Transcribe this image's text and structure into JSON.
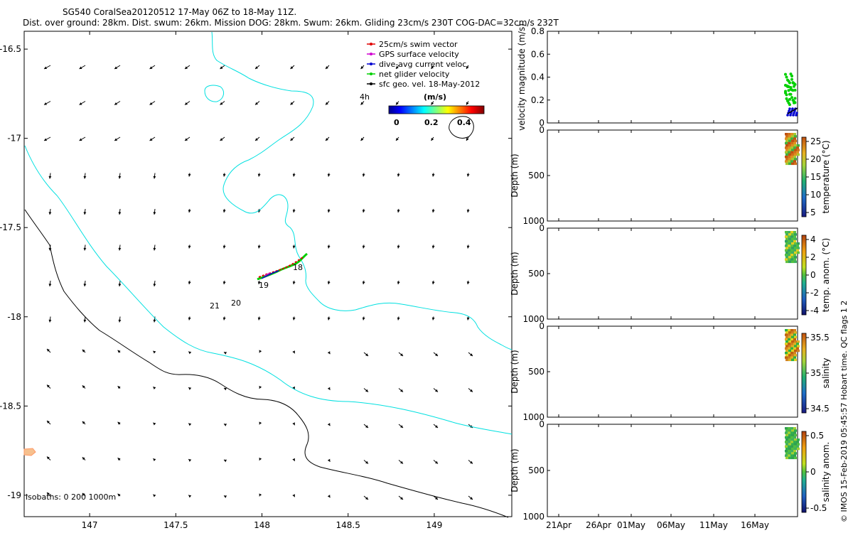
{
  "header": {
    "title_line1": "SG540 CoralSea20120512 17-May 06Z to 18-May 11Z.",
    "title_line2": "Dist. over ground: 28km. Dist. swum: 26km. Mission DOG: 28km. Swum: 26km. Gliding 23cm/s 230T COG-DAC=32cm/s 232T"
  },
  "credit": "© IMOS 15-Feb-2019 05:45:57 Hobart time. QC flags 1  2",
  "map": {
    "xticks": [
      "147",
      "147.5",
      "148",
      "148.5",
      "149"
    ],
    "xtick_values": [
      147,
      147.5,
      148,
      148.5,
      149
    ],
    "yticks": [
      "-16.5",
      "-17",
      "-17.5",
      "-18",
      "-18.5",
      "-19"
    ],
    "ytick_values": [
      -16.5,
      -17,
      -17.5,
      -18,
      -18.5,
      -19
    ],
    "legend": [
      {
        "label": "25cm/s swim vector",
        "color": "#e00000"
      },
      {
        "label": "GPS surface velocity",
        "color": "#d000d0"
      },
      {
        "label": "dive-avg current veloc.",
        "color": "#0000d0"
      },
      {
        "label": "net glider velocity",
        "color": "#00d000"
      },
      {
        "label": "sfc geo. vel. 18-May-2012",
        "color": "#000000"
      }
    ],
    "hour_label": "4h",
    "colorbar_title": "(m/s)",
    "colorbar_ticks": [
      "0",
      "0.2",
      "0.4"
    ],
    "track_labels": [
      "18",
      "19",
      "20",
      "21"
    ],
    "isobaths_label": "isobaths: 0   200  1000m",
    "isobath_colors": {
      "0m": "#ff9966",
      "200m": "#00e0e0",
      "1000m": "#000000"
    }
  },
  "timeline": {
    "xticks": [
      "21Apr",
      "26Apr",
      "01May",
      "06May",
      "11May",
      "16May"
    ]
  },
  "panels": [
    {
      "ylabel": "velocity magnitude (m/s)",
      "yticks": [
        "0",
        "0.2",
        "0.4",
        "0.6",
        "0.8"
      ],
      "cb_label": "",
      "cb_ticks": []
    },
    {
      "ylabel": "Depth (m)",
      "yticks": [
        "0",
        "500",
        "1000"
      ],
      "cb_label": "temperature (°C)",
      "cb_ticks": [
        "25",
        "20",
        "15",
        "10",
        "5"
      ]
    },
    {
      "ylabel": "Depth (m)",
      "yticks": [
        "0",
        "500",
        "1000"
      ],
      "cb_label": "temp. anom. (°C)",
      "cb_ticks": [
        "4",
        "2",
        "0",
        "-2",
        "-4"
      ]
    },
    {
      "ylabel": "Depth (m)",
      "yticks": [
        "0",
        "500",
        "1000"
      ],
      "cb_label": "salinity",
      "cb_ticks": [
        "35.5",
        "35",
        "34.5"
      ]
    },
    {
      "ylabel": "Depth (m)",
      "yticks": [
        "0",
        "500",
        "1000"
      ],
      "cb_label": "salinity anom.",
      "cb_ticks": [
        "0.5",
        "0",
        "-0.5"
      ]
    }
  ],
  "chart_data": [
    {
      "type": "map",
      "title": "SG540 CoralSea20120512 17-May 06Z to 18-May 11Z.",
      "xlim": [
        146.62,
        149.45
      ],
      "ylim": [
        -19.12,
        -16.4
      ],
      "glider_track": {
        "lon": [
          148.0,
          148.06,
          148.12,
          148.18,
          148.24
        ],
        "lat": [
          -17.79,
          -17.76,
          -17.72,
          -17.69,
          -17.65
        ]
      },
      "track_time_labels": [
        {
          "label": "18",
          "lon": 148.2,
          "lat": -17.72
        },
        {
          "label": "19",
          "lon": 148.01,
          "lat": -17.83
        },
        {
          "label": "20",
          "lon": 147.86,
          "lat": -17.94
        },
        {
          "label": "21",
          "lon": 147.74,
          "lat": -17.95
        }
      ]
    },
    {
      "type": "scatter",
      "ylabel": "velocity magnitude (m/s)",
      "ylim": [
        0,
        0.8
      ],
      "xticks": [
        "21Apr",
        "26Apr",
        "01May",
        "06May",
        "11May",
        "16May"
      ],
      "series": [
        {
          "name": "net glider velocity",
          "color": "#00d000",
          "y_range": [
            0.1,
            0.35
          ]
        },
        {
          "name": "dive-avg current veloc.",
          "color": "#0000d0",
          "y_range": [
            0.05,
            0.15
          ]
        }
      ]
    },
    {
      "type": "scatter",
      "ylabel": "Depth (m)",
      "ylim": [
        1000,
        0
      ],
      "cb_label": "temperature (°C)",
      "clim": [
        3,
        29
      ],
      "depth_range": [
        0,
        320
      ]
    },
    {
      "type": "scatter",
      "ylabel": "Depth (m)",
      "ylim": [
        1000,
        0
      ],
      "cb_label": "temp. anom. (°C)",
      "clim": [
        -4,
        4
      ],
      "depth_range": [
        0,
        330
      ]
    },
    {
      "type": "scatter",
      "ylabel": "Depth (m)",
      "ylim": [
        1000,
        0
      ],
      "cb_label": "salinity",
      "clim": [
        34.3,
        35.8
      ],
      "depth_range": [
        0,
        330
      ]
    },
    {
      "type": "scatter",
      "ylabel": "Depth (m)",
      "ylim": [
        1000,
        0
      ],
      "cb_label": "salinity anom.",
      "clim": [
        -0.5,
        0.5
      ],
      "depth_range": [
        0,
        330
      ]
    }
  ]
}
